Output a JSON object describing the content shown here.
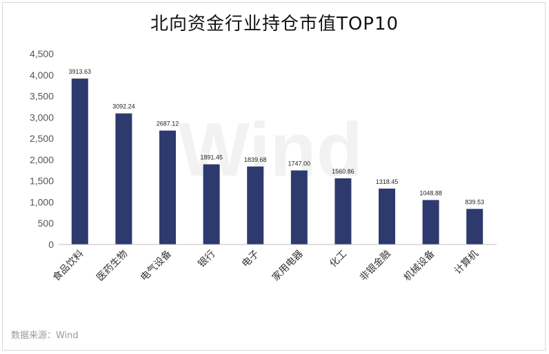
{
  "chart_data": {
    "type": "bar",
    "title": "北向资金行业持仓市值TOP10",
    "categories": [
      "食品饮料",
      "医药生物",
      "电气设备",
      "银行",
      "电子",
      "家用电器",
      "化工",
      "非银金融",
      "机械设备",
      "计算机"
    ],
    "values": [
      3913.63,
      3092.24,
      2687.12,
      1891.45,
      1839.68,
      1747.0,
      1560.86,
      1318.45,
      1048.88,
      839.53
    ],
    "data_labels": [
      "3913.63",
      "3092.24",
      "2687.12",
      "1891.45",
      "1839.68",
      "1747.00",
      "1560.86",
      "1318.45",
      "1048.88",
      "839.53"
    ],
    "ylim": [
      0,
      4500
    ],
    "yticks": [
      0,
      500,
      1000,
      1500,
      2000,
      2500,
      3000,
      3500,
      4000,
      4500
    ],
    "ytick_labels": [
      "0",
      "500",
      "1,000",
      "1,500",
      "2,000",
      "2,500",
      "3,000",
      "3,500",
      "4,000",
      "4,500"
    ],
    "bar_color": "#2e3a6e",
    "grid": false,
    "xlabel": "",
    "ylabel": ""
  },
  "source": "数据来源：Wind",
  "watermark": "Wind"
}
